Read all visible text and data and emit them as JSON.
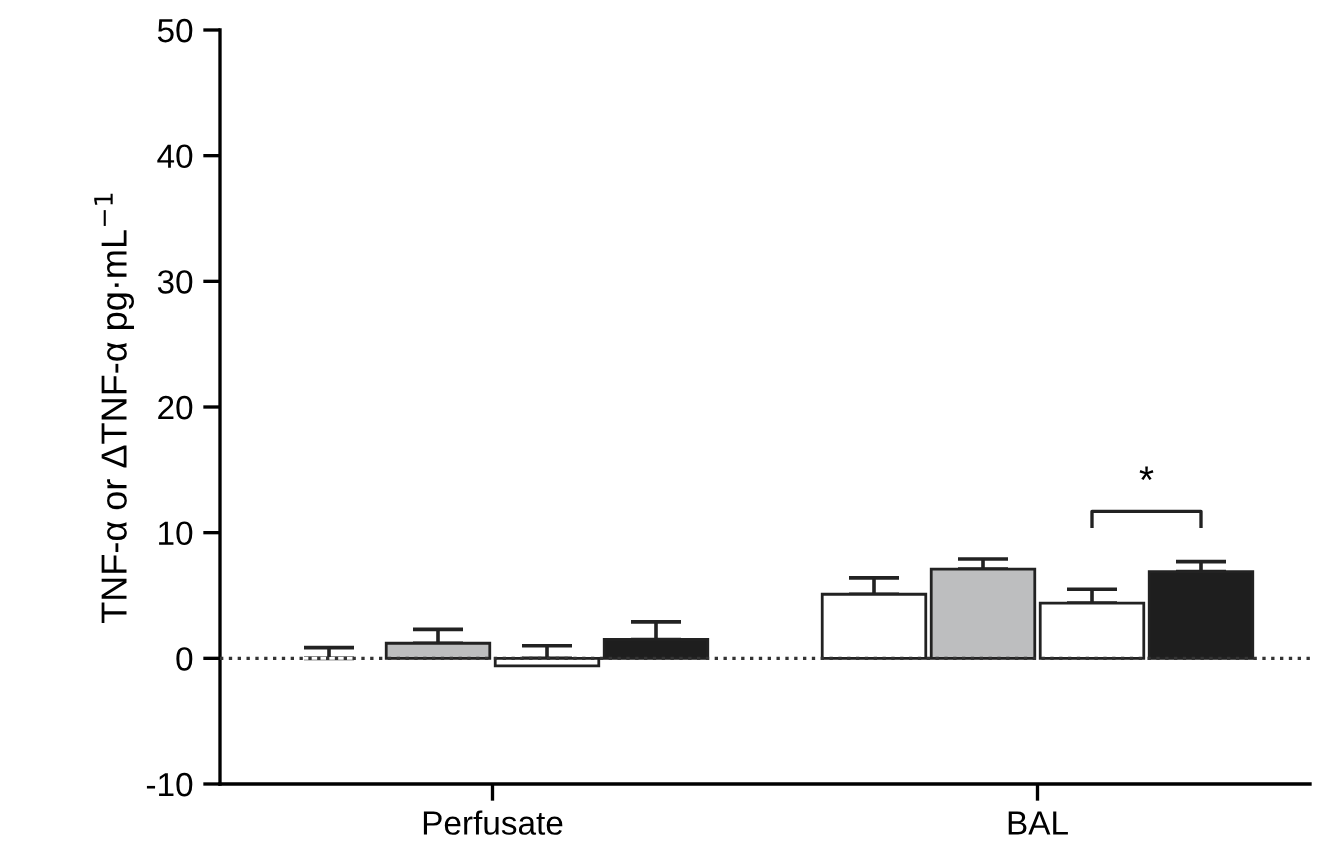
{
  "chart_data": {
    "type": "bar",
    "ylabel": "TNF-α or ΔTNF-α pg·mL$^{−1}$",
    "categories": [
      "Perfusate",
      "BAL"
    ],
    "series": [
      {
        "color": "#ffffff",
        "values": [
          0,
          5.1
        ],
        "errors": [
          [
            0,
            0.85
          ],
          [
            5.1,
            6.4
          ]
        ]
      },
      {
        "color": "#bdbebf",
        "values": [
          1.2,
          7.1
        ],
        "errors": [
          [
            1.2,
            2.3
          ],
          [
            7.1,
            7.9
          ]
        ]
      },
      {
        "color": "#ffffff",
        "values": [
          -0.6,
          4.4
        ],
        "errors": [
          [
            0,
            1.0
          ],
          [
            4.4,
            5.5
          ]
        ]
      },
      {
        "color": "#1e1e1e",
        "values": [
          1.5,
          6.9
        ],
        "errors": [
          [
            1.5,
            2.9
          ],
          [
            6.9,
            7.7
          ]
        ]
      }
    ],
    "ylim": [
      -10,
      50
    ],
    "yticks": [
      -10,
      0,
      10,
      20,
      30,
      40,
      50
    ],
    "ref_lines": [
      {
        "axis": "y",
        "value": 0,
        "line_style": "dotted",
        "color": "#333333"
      }
    ],
    "annotations": [
      "*"
    ],
    "grid": false,
    "legend": false
  }
}
